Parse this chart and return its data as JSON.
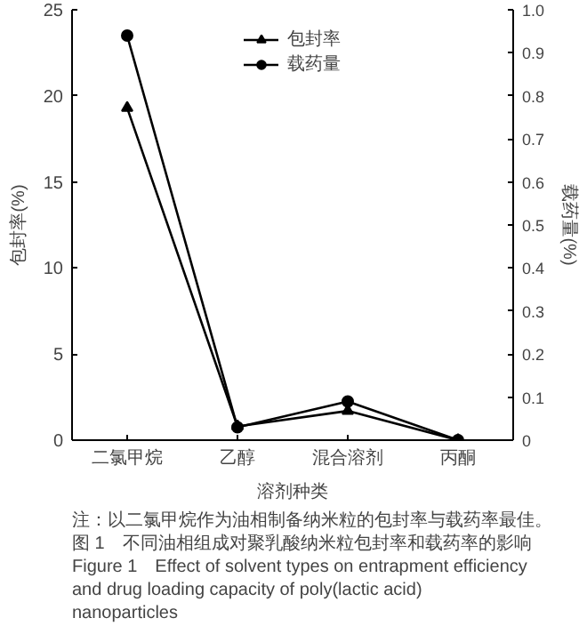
{
  "chart_data": {
    "type": "line",
    "xlabel": "溶剂种类",
    "ylabel": "包封率(%)",
    "y2label": "载药量(%)",
    "categories": [
      "二氯甲烷",
      "乙醇",
      "混合溶剂",
      "丙酮"
    ],
    "series": [
      {
        "name": "包封率",
        "color": "#000000",
        "marker": "triangle",
        "values": [
          19.3,
          0.8,
          1.7,
          0
        ]
      },
      {
        "name": "载药量",
        "color": "#000000",
        "marker": "circle",
        "axis": "y2",
        "values": [
          0.94,
          0.03,
          0.09,
          0
        ]
      }
    ],
    "ylim": [
      0,
      25
    ],
    "yticks": [
      0,
      5,
      10,
      15,
      20,
      25
    ],
    "y2lim": [
      0,
      1.0
    ],
    "y2ticks": [
      {
        "value": 0,
        "label": "0"
      },
      {
        "value": 0.1,
        "label": "0.1"
      },
      {
        "value": 0.2,
        "label": "0.2"
      },
      {
        "value": 0.3,
        "label": "0.3"
      },
      {
        "value": 0.4,
        "label": "0.4"
      },
      {
        "value": 0.5,
        "label": "0.5"
      },
      {
        "value": 0.6,
        "label": "0.6"
      },
      {
        "value": 0.7,
        "label": "0.7"
      },
      {
        "value": 0.8,
        "label": "0.8"
      },
      {
        "value": 0.9,
        "label": "0.9"
      },
      {
        "value": 1.0,
        "label": "1.0"
      }
    ],
    "grid": false,
    "legend": "top",
    "annotations": [
      "注：以二氯甲烷作为油相制备纳米粒的包封率与载药率最佳。",
      "图 1　不同油相组成对聚乳酸纳米粒包封率和载药率的影响",
      "Figure 1　Effect of solvent types on entrapment efficiency and drug loading capacity of poly(lactic acid) nanoparticles"
    ]
  }
}
